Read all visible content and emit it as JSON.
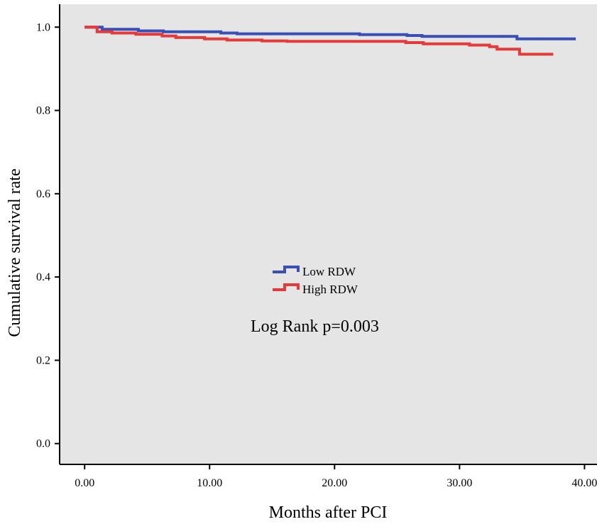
{
  "chart_data": {
    "type": "line",
    "title": "",
    "xlabel": "Months after PCI",
    "ylabel": "Cumulative survival rate",
    "xlim": [
      -2.0,
      41.0
    ],
    "ylim": [
      -0.05,
      1.055
    ],
    "xticks": [
      0,
      10,
      20,
      30,
      40
    ],
    "xtick_labels": [
      "0.00",
      "10.00",
      "20.00",
      "30.00",
      "40.00"
    ],
    "yticks": [
      0.0,
      0.2,
      0.4,
      0.6,
      0.8,
      1.0
    ],
    "ytick_labels": [
      "0.0",
      "0.2",
      "0.4",
      "0.6",
      "0.8",
      "1.0"
    ],
    "grid": false,
    "background_color": "#e5e5e5",
    "legend_position": "center",
    "series": [
      {
        "name": "Low RDW",
        "color": "#3a4fb5",
        "step": true,
        "x": [
          0,
          1.4,
          4.3,
          6.3,
          10.9,
          12.2,
          22.0,
          25.8,
          27.0,
          34.6,
          39.3
        ],
        "y": [
          1.0,
          0.995,
          0.991,
          0.989,
          0.986,
          0.984,
          0.982,
          0.98,
          0.978,
          0.972,
          0.972
        ]
      },
      {
        "name": "High RDW",
        "color": "#e43a3a",
        "step": true,
        "x": [
          0,
          1.0,
          2.2,
          4.1,
          6.2,
          7.3,
          9.6,
          11.4,
          14.2,
          16.2,
          25.7,
          27.1,
          30.8,
          32.4,
          33.0,
          34.8,
          37.5
        ],
        "y": [
          1.0,
          0.989,
          0.986,
          0.983,
          0.979,
          0.975,
          0.972,
          0.969,
          0.967,
          0.966,
          0.963,
          0.96,
          0.957,
          0.953,
          0.947,
          0.935,
          0.935
        ]
      }
    ],
    "annotations": [
      {
        "text": "Log Rank p=0.003"
      }
    ]
  }
}
